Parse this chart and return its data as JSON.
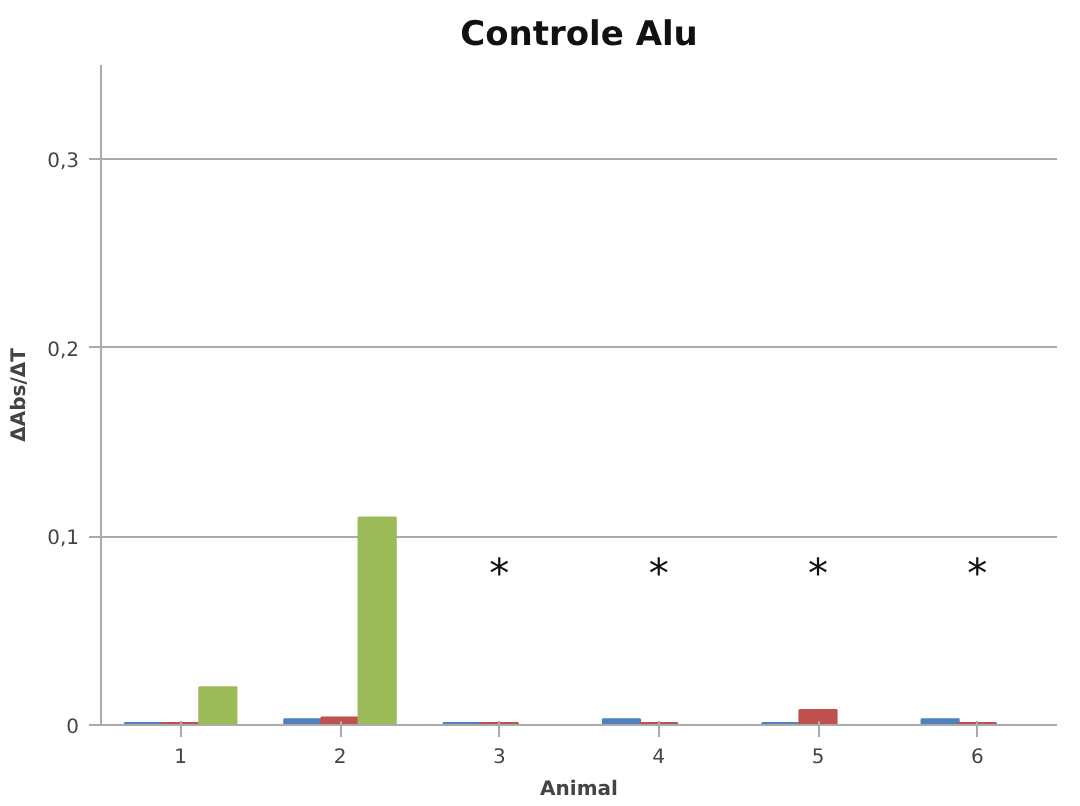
{
  "chart_data": {
    "type": "bar",
    "title": "Controle Alu",
    "xlabel": "Animal",
    "ylabel": "ΔAbs/ΔT",
    "categories": [
      "1",
      "2",
      "3",
      "4",
      "5",
      "6"
    ],
    "series": [
      {
        "color": "#4f81bd",
        "values": [
          0.001,
          0.003,
          0.001,
          0.003,
          0.001,
          0.003
        ]
      },
      {
        "color": "#c0504d",
        "values": [
          0.001,
          0.004,
          0.001,
          0.001,
          0.008,
          0.001
        ]
      },
      {
        "color": "#9bbb59",
        "values": [
          0.02,
          0.11,
          null,
          null,
          null,
          null
        ]
      }
    ],
    "ylim": [
      0,
      0.35
    ],
    "yticks": [
      0,
      {
        "value": 0.1,
        "label": "0,1"
      },
      {
        "value": 0.2,
        "label": "0,2"
      },
      {
        "value": 0.3,
        "label": "0,3"
      }
    ],
    "grid": "y",
    "annotations": [
      "*",
      "*",
      "*",
      "*"
    ]
  }
}
